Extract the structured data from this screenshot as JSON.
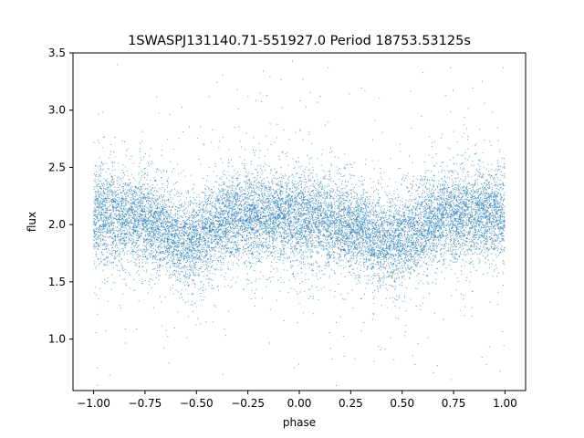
{
  "chart_data": {
    "type": "scatter",
    "title": "1SWASPJ131140.71-551927.0 Period 18753.53125s",
    "xlabel": "phase",
    "ylabel": "flux",
    "xlim": [
      -1.1,
      1.1
    ],
    "ylim": [
      0.55,
      3.5
    ],
    "x_ticks": [
      -1.0,
      -0.75,
      -0.5,
      -0.25,
      0.0,
      0.25,
      0.5,
      0.75,
      1.0
    ],
    "x_tick_labels": [
      "−1.00",
      "−0.75",
      "−0.50",
      "−0.25",
      "0.00",
      "0.25",
      "0.50",
      "0.75",
      "1.00"
    ],
    "y_ticks": [
      1.0,
      1.5,
      2.0,
      2.5,
      3.0,
      3.5
    ],
    "y_tick_labels": [
      "1.0",
      "1.5",
      "2.0",
      "2.5",
      "3.0",
      "3.5"
    ],
    "grid": false,
    "legend": "none",
    "point_color": "#1f77b4",
    "series": [
      {
        "x_range": [
          -1.0,
          1.0
        ],
        "mean_flux_profile": {
          "x": [
            -1.0,
            -0.9,
            -0.8,
            -0.7,
            -0.6,
            -0.55,
            -0.5,
            -0.4,
            -0.3,
            -0.2,
            -0.1,
            0.0,
            0.1,
            0.2,
            0.3,
            0.4,
            0.45,
            0.5,
            0.6,
            0.7,
            0.8,
            0.9,
            1.0
          ],
          "y": [
            2.08,
            2.08,
            2.05,
            2.0,
            1.88,
            1.84,
            1.87,
            2.0,
            2.07,
            2.08,
            2.08,
            2.08,
            2.05,
            2.0,
            1.95,
            1.86,
            1.84,
            1.87,
            2.0,
            2.07,
            2.08,
            2.08,
            2.08
          ]
        },
        "typical_scatter": 0.2,
        "point_count": 14000
      }
    ]
  }
}
